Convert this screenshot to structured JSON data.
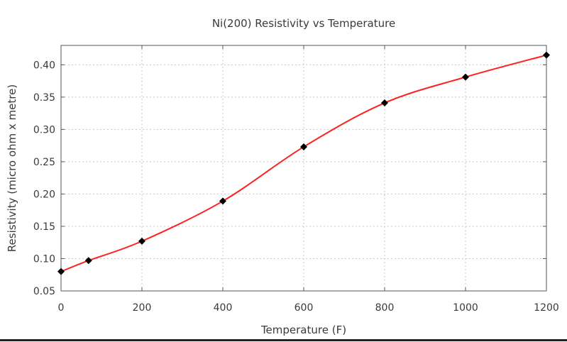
{
  "chart_data": {
    "type": "line",
    "title": "Ni(200) Resistivity vs Temperature",
    "xlabel": "Temperature (F)",
    "ylabel": "Resistivity (micro ohm x metre)",
    "xlim": [
      0,
      1200
    ],
    "ylim": [
      0.05,
      0.43
    ],
    "x_ticks": [
      0,
      200,
      400,
      600,
      800,
      1000,
      1200
    ],
    "y_ticks": [
      0.05,
      0.1,
      0.15,
      0.2,
      0.25,
      0.3,
      0.35,
      0.4
    ],
    "x_tick_labels": [
      "0",
      "200",
      "400",
      "600",
      "800",
      "1000",
      "1200"
    ],
    "y_tick_labels": [
      "0.05",
      "0.10",
      "0.15",
      "0.20",
      "0.25",
      "0.30",
      "0.35",
      "0.40"
    ],
    "grid": true,
    "series": [
      {
        "x": [
          0,
          68,
          200,
          400,
          600,
          800,
          1000,
          1200
        ],
        "y": [
          0.08,
          0.097,
          0.127,
          0.189,
          0.273,
          0.341,
          0.381,
          0.415
        ],
        "line_color": "#ff2020",
        "marker_color": "#000000",
        "marker": "diamond",
        "smooth": true
      }
    ]
  }
}
